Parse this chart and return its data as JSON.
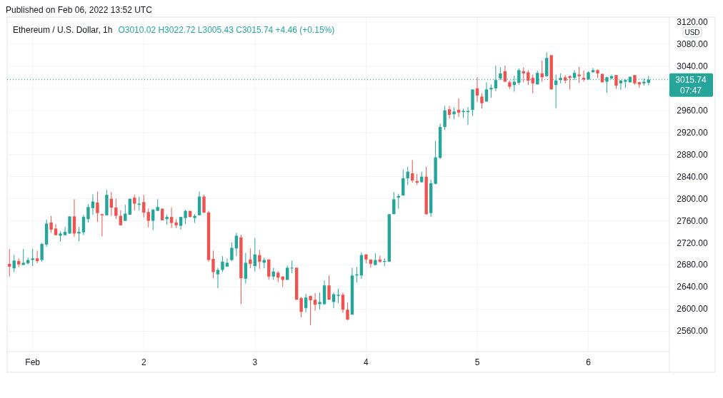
{
  "chart_data": {
    "type": "candlestick",
    "title": "Ethereum / U.S. Dollar, 1h",
    "subtitle": "O3010.02 H3022.72 L3005.43 C3015.74 +4.46 (+0.15%)",
    "ylabel": "USD",
    "annotations": [
      "Published on Feb 06, 2022 13:52 UTC",
      "07:47"
    ],
    "x": [
      "2022-01-31T19:00",
      "2022-01-31T20:00",
      "2022-01-31T21:00",
      "2022-01-31T22:00",
      "2022-01-31T23:00",
      "2022-02-01T00:00",
      "2022-02-01T01:00",
      "2022-02-01T02:00",
      "2022-02-01T03:00",
      "2022-02-01T04:00",
      "2022-02-01T05:00",
      "2022-02-01T06:00",
      "2022-02-01T07:00",
      "2022-02-01T08:00",
      "2022-02-01T09:00",
      "2022-02-01T10:00",
      "2022-02-01T11:00",
      "2022-02-01T12:00",
      "2022-02-01T13:00",
      "2022-02-01T14:00",
      "2022-02-01T15:00",
      "2022-02-01T16:00",
      "2022-02-01T17:00",
      "2022-02-01T18:00",
      "2022-02-01T19:00",
      "2022-02-01T20:00",
      "2022-02-01T21:00",
      "2022-02-01T22:00",
      "2022-02-01T23:00",
      "2022-02-02T00:00",
      "2022-02-02T01:00",
      "2022-02-02T02:00",
      "2022-02-02T03:00",
      "2022-02-02T04:00",
      "2022-02-02T05:00",
      "2022-02-02T06:00",
      "2022-02-02T07:00",
      "2022-02-02T08:00",
      "2022-02-02T09:00",
      "2022-02-02T10:00",
      "2022-02-02T11:00",
      "2022-02-02T12:00",
      "2022-02-02T13:00",
      "2022-02-02T14:00",
      "2022-02-02T15:00",
      "2022-02-02T16:00",
      "2022-02-02T17:00",
      "2022-02-02T18:00",
      "2022-02-02T19:00",
      "2022-02-02T20:00",
      "2022-02-02T21:00",
      "2022-02-02T22:00",
      "2022-02-02T23:00",
      "2022-02-03T00:00",
      "2022-02-03T01:00",
      "2022-02-03T02:00",
      "2022-02-03T03:00",
      "2022-02-03T04:00",
      "2022-02-03T05:00",
      "2022-02-03T06:00",
      "2022-02-03T07:00",
      "2022-02-03T08:00",
      "2022-02-03T09:00",
      "2022-02-03T10:00",
      "2022-02-03T11:00",
      "2022-02-03T12:00",
      "2022-02-03T13:00",
      "2022-02-03T14:00",
      "2022-02-03T15:00",
      "2022-02-03T16:00",
      "2022-02-03T17:00",
      "2022-02-03T18:00",
      "2022-02-03T19:00",
      "2022-02-03T20:00",
      "2022-02-03T21:00",
      "2022-02-03T22:00",
      "2022-02-03T23:00",
      "2022-02-04T00:00",
      "2022-02-04T01:00",
      "2022-02-04T02:00",
      "2022-02-04T03:00",
      "2022-02-04T04:00",
      "2022-02-04T05:00",
      "2022-02-04T06:00",
      "2022-02-04T07:00",
      "2022-02-04T08:00",
      "2022-02-04T09:00",
      "2022-02-04T10:00",
      "2022-02-04T11:00",
      "2022-02-04T12:00",
      "2022-02-04T13:00",
      "2022-02-04T14:00",
      "2022-02-04T15:00",
      "2022-02-04T16:00",
      "2022-02-04T17:00",
      "2022-02-04T18:00",
      "2022-02-04T19:00",
      "2022-02-04T20:00",
      "2022-02-04T21:00",
      "2022-02-04T22:00",
      "2022-02-04T23:00",
      "2022-02-05T00:00",
      "2022-02-05T01:00",
      "2022-02-05T02:00",
      "2022-02-05T03:00",
      "2022-02-05T04:00",
      "2022-02-05T05:00",
      "2022-02-05T06:00",
      "2022-02-05T07:00",
      "2022-02-05T08:00",
      "2022-02-05T09:00",
      "2022-02-05T10:00",
      "2022-02-05T11:00",
      "2022-02-05T12:00",
      "2022-02-05T13:00",
      "2022-02-05T14:00",
      "2022-02-05T15:00",
      "2022-02-05T16:00",
      "2022-02-05T17:00",
      "2022-02-05T18:00",
      "2022-02-05T19:00",
      "2022-02-05T20:00",
      "2022-02-05T21:00",
      "2022-02-05T22:00",
      "2022-02-05T23:00",
      "2022-02-06T00:00",
      "2022-02-06T01:00",
      "2022-02-06T02:00",
      "2022-02-06T03:00",
      "2022-02-06T04:00",
      "2022-02-06T05:00",
      "2022-02-06T06:00",
      "2022-02-06T07:00",
      "2022-02-06T08:00",
      "2022-02-06T09:00",
      "2022-02-06T10:00",
      "2022-02-06T11:00",
      "2022-02-06T12:00",
      "2022-02-06T13:00"
    ],
    "ohlc": [
      [
        2682,
        2709,
        2659,
        2677
      ],
      [
        2674,
        2698,
        2667,
        2688
      ],
      [
        2687,
        2692,
        2676,
        2681
      ],
      [
        2680,
        2709,
        2680,
        2684
      ],
      [
        2683,
        2693,
        2681,
        2689
      ],
      [
        2689,
        2709,
        2678,
        2692
      ],
      [
        2692,
        2706,
        2683,
        2687
      ],
      [
        2689,
        2720,
        2686,
        2718
      ],
      [
        2717,
        2762,
        2713,
        2755
      ],
      [
        2757,
        2769,
        2738,
        2744
      ],
      [
        2746,
        2754,
        2734,
        2734
      ],
      [
        2733,
        2741,
        2722,
        2737
      ],
      [
        2734,
        2749,
        2734,
        2740
      ],
      [
        2737,
        2768,
        2736,
        2768
      ],
      [
        2768,
        2799,
        2731,
        2737
      ],
      [
        2737,
        2749,
        2723,
        2740
      ],
      [
        2739,
        2771,
        2734,
        2767
      ],
      [
        2763,
        2790,
        2757,
        2785
      ],
      [
        2783,
        2808,
        2771,
        2795
      ],
      [
        2793,
        2813,
        2758,
        2774
      ],
      [
        2772,
        2773,
        2732,
        2770
      ],
      [
        2770,
        2816,
        2770,
        2807
      ],
      [
        2800,
        2812,
        2769,
        2784
      ],
      [
        2784,
        2800,
        2763,
        2769
      ],
      [
        2769,
        2779,
        2752,
        2752
      ],
      [
        2760,
        2789,
        2760,
        2773
      ],
      [
        2771,
        2800,
        2771,
        2800
      ],
      [
        2802,
        2807,
        2779,
        2791
      ],
      [
        2789,
        2804,
        2779,
        2791
      ],
      [
        2794,
        2807,
        2766,
        2775
      ],
      [
        2776,
        2782,
        2748,
        2760
      ],
      [
        2760,
        2782,
        2743,
        2780
      ],
      [
        2778,
        2799,
        2778,
        2785
      ],
      [
        2782,
        2782,
        2761,
        2761
      ],
      [
        2763,
        2771,
        2753,
        2767
      ],
      [
        2767,
        2784,
        2747,
        2756
      ],
      [
        2757,
        2763,
        2747,
        2752
      ],
      [
        2751,
        2767,
        2744,
        2767
      ],
      [
        2765,
        2780,
        2754,
        2778
      ],
      [
        2778,
        2778,
        2766,
        2767
      ],
      [
        2765,
        2772,
        2756,
        2769
      ],
      [
        2770,
        2813,
        2770,
        2804
      ],
      [
        2804,
        2807,
        2774,
        2775
      ],
      [
        2775,
        2778,
        2686,
        2689
      ],
      [
        2691,
        2706,
        2656,
        2667
      ],
      [
        2663,
        2675,
        2638,
        2671
      ],
      [
        2671,
        2696,
        2667,
        2686
      ],
      [
        2677,
        2692,
        2677,
        2684
      ],
      [
        2689,
        2721,
        2687,
        2711
      ],
      [
        2710,
        2738,
        2696,
        2733
      ],
      [
        2730,
        2735,
        2609,
        2656
      ],
      [
        2655,
        2702,
        2646,
        2684
      ],
      [
        2690,
        2710,
        2674,
        2682
      ],
      [
        2678,
        2729,
        2668,
        2699
      ],
      [
        2698,
        2707,
        2673,
        2686
      ],
      [
        2684,
        2693,
        2674,
        2689
      ],
      [
        2690,
        2690,
        2653,
        2659
      ],
      [
        2659,
        2675,
        2653,
        2668
      ],
      [
        2666,
        2669,
        2649,
        2657
      ],
      [
        2659,
        2660,
        2640,
        2653
      ],
      [
        2653,
        2679,
        2653,
        2675
      ],
      [
        2674,
        2688,
        2665,
        2675
      ],
      [
        2675,
        2675,
        2617,
        2617
      ],
      [
        2620,
        2622,
        2585,
        2595
      ],
      [
        2602,
        2628,
        2594,
        2621
      ],
      [
        2624,
        2624,
        2571,
        2616
      ],
      [
        2617,
        2629,
        2597,
        2608
      ],
      [
        2609,
        2630,
        2599,
        2613
      ],
      [
        2609,
        2652,
        2608,
        2643
      ],
      [
        2643,
        2661,
        2617,
        2617
      ],
      [
        2613,
        2630,
        2602,
        2627
      ],
      [
        2624,
        2637,
        2611,
        2626
      ],
      [
        2626,
        2630,
        2593,
        2599
      ],
      [
        2599,
        2612,
        2580,
        2581
      ],
      [
        2590,
        2675,
        2590,
        2661
      ],
      [
        2661,
        2676,
        2648,
        2663
      ],
      [
        2661,
        2703,
        2655,
        2698
      ],
      [
        2699,
        2699,
        2683,
        2690
      ],
      [
        2690,
        2690,
        2675,
        2682
      ],
      [
        2680,
        2701,
        2680,
        2689
      ],
      [
        2690,
        2697,
        2684,
        2686
      ],
      [
        2686,
        2692,
        2678,
        2687
      ],
      [
        2686,
        2772,
        2686,
        2772
      ],
      [
        2772,
        2812,
        2772,
        2799
      ],
      [
        2802,
        2809,
        2782,
        2805
      ],
      [
        2806,
        2853,
        2806,
        2837
      ],
      [
        2837,
        2858,
        2825,
        2849
      ],
      [
        2846,
        2870,
        2829,
        2833
      ],
      [
        2832,
        2845,
        2825,
        2829
      ],
      [
        2830,
        2849,
        2829,
        2840
      ],
      [
        2840,
        2858,
        2771,
        2772
      ],
      [
        2774,
        2835,
        2767,
        2828
      ],
      [
        2827,
        2905,
        2826,
        2875
      ],
      [
        2874,
        2936,
        2872,
        2930
      ],
      [
        2930,
        2968,
        2925,
        2960
      ],
      [
        2962,
        2968,
        2945,
        2952
      ],
      [
        2953,
        2965,
        2944,
        2958
      ],
      [
        2961,
        2982,
        2948,
        2956
      ],
      [
        2957,
        2963,
        2946,
        2959
      ],
      [
        2957,
        2966,
        2934,
        2959
      ],
      [
        2961,
        2998,
        2950,
        2998
      ],
      [
        3000,
        3020,
        2975,
        2987
      ],
      [
        2985,
        2991,
        2963,
        2973
      ],
      [
        2976,
        3011,
        2976,
        2998
      ],
      [
        2998,
        3007,
        2983,
        3001
      ],
      [
        3000,
        3041,
        2995,
        3015
      ],
      [
        3018,
        3038,
        3015,
        3027
      ],
      [
        3031,
        3041,
        3012,
        3012
      ],
      [
        3011,
        3014,
        2999,
        3003
      ],
      [
        3006,
        3023,
        2994,
        3012
      ],
      [
        3010,
        3036,
        3006,
        3033
      ],
      [
        3031,
        3038,
        3011,
        3027
      ],
      [
        3029,
        3033,
        3006,
        3014
      ],
      [
        3019,
        3025,
        2991,
        3009
      ],
      [
        3007,
        3032,
        3007,
        3028
      ],
      [
        3027,
        3050,
        3012,
        3020
      ],
      [
        3022,
        3065,
        3021,
        3055
      ],
      [
        3060,
        3060,
        2998,
        2998
      ],
      [
        3006,
        3025,
        2964,
        3014
      ],
      [
        3015,
        3027,
        3009,
        3019
      ],
      [
        3020,
        3024,
        3009,
        3014
      ],
      [
        3022,
        3023,
        2998,
        3019
      ],
      [
        3019,
        3033,
        3015,
        3028
      ],
      [
        3025,
        3039,
        3010,
        3022
      ],
      [
        3019,
        3032,
        3012,
        3016
      ],
      [
        3016,
        3031,
        3016,
        3029
      ],
      [
        3029,
        3037,
        3029,
        3033
      ],
      [
        3033,
        3034,
        3019,
        3027
      ],
      [
        3026,
        3027,
        3011,
        3011
      ],
      [
        3012,
        3021,
        2992,
        3020
      ],
      [
        3018,
        3025,
        3016,
        3022
      ],
      [
        3024,
        3024,
        2999,
        3005
      ],
      [
        3009,
        3015,
        2997,
        3014
      ],
      [
        3012,
        3016,
        3001,
        3015
      ],
      [
        3011,
        3021,
        3010,
        3021
      ],
      [
        3024,
        3024,
        3006,
        3009
      ],
      [
        3011,
        3012,
        3001,
        3007
      ],
      [
        3009,
        3018,
        3005,
        3012
      ],
      [
        3010.02,
        3022.72,
        3005.43,
        3015.74
      ]
    ],
    "colors": [
      "#ef5350",
      "#26a69a",
      "#ef5350",
      "#26a69a",
      "#26a69a",
      "#26a69a",
      "#ef5350",
      "#26a69a",
      "#26a69a",
      "#ef5350",
      "#ef5350",
      "#26a69a",
      "#26a69a",
      "#26a69a",
      "#ef5350",
      "#26a69a",
      "#26a69a",
      "#26a69a",
      "#26a69a",
      "#ef5350",
      "#ef5350",
      "#26a69a",
      "#ef5350",
      "#ef5350",
      "#ef5350",
      "#26a69a",
      "#26a69a",
      "#ef5350",
      "#26a69a",
      "#ef5350",
      "#ef5350",
      "#26a69a",
      "#26a69a",
      "#ef5350",
      "#26a69a",
      "#ef5350",
      "#ef5350",
      "#26a69a",
      "#26a69a",
      "#ef5350",
      "#26a69a",
      "#26a69a",
      "#ef5350",
      "#ef5350",
      "#ef5350",
      "#26a69a",
      "#26a69a",
      "#26a69a",
      "#26a69a",
      "#26a69a",
      "#ef5350",
      "#26a69a",
      "#ef5350",
      "#26a69a",
      "#ef5350",
      "#26a69a",
      "#ef5350",
      "#26a69a",
      "#ef5350",
      "#ef5350",
      "#26a69a",
      "#26a69a",
      "#ef5350",
      "#ef5350",
      "#26a69a",
      "#ef5350",
      "#ef5350",
      "#26a69a",
      "#26a69a",
      "#ef5350",
      "#26a69a",
      "#26a69a",
      "#ef5350",
      "#ef5350",
      "#26a69a",
      "#26a69a",
      "#26a69a",
      "#ef5350",
      "#ef5350",
      "#26a69a",
      "#ef5350",
      "#26a69a",
      "#26a69a",
      "#26a69a",
      "#26a69a",
      "#26a69a",
      "#26a69a",
      "#ef5350",
      "#ef5350",
      "#26a69a",
      "#ef5350",
      "#26a69a",
      "#26a69a",
      "#26a69a",
      "#26a69a",
      "#ef5350",
      "#26a69a",
      "#ef5350",
      "#26a69a",
      "#26a69a",
      "#26a69a",
      "#ef5350",
      "#ef5350",
      "#26a69a",
      "#26a69a",
      "#26a69a",
      "#26a69a",
      "#ef5350",
      "#ef5350",
      "#26a69a",
      "#26a69a",
      "#ef5350",
      "#ef5350",
      "#ef5350",
      "#26a69a",
      "#ef5350",
      "#26a69a",
      "#ef5350",
      "#26a69a",
      "#26a69a",
      "#ef5350",
      "#ef5350",
      "#26a69a",
      "#ef5350",
      "#ef5350",
      "#26a69a",
      "#26a69a",
      "#ef5350",
      "#ef5350",
      "#26a69a",
      "#26a69a",
      "#ef5350",
      "#26a69a",
      "#26a69a",
      "#26a69a",
      "#ef5350",
      "#ef5350",
      "#26a69a",
      "#26a69a"
    ],
    "xlim": [
      "2022-01-31T18:30",
      "2022-02-06T17:30"
    ],
    "xticks": [
      {
        "value": "2022-02-01",
        "label": "Feb"
      },
      {
        "value": "2022-02-02",
        "label": "2"
      },
      {
        "value": "2022-02-03",
        "label": "3"
      },
      {
        "value": "2022-02-04",
        "label": "4"
      },
      {
        "value": "2022-02-05",
        "label": "5"
      },
      {
        "value": "2022-02-06",
        "label": "6"
      }
    ],
    "ylim": [
      2523,
      3129
    ],
    "yticks": [
      {
        "value": 2560,
        "label": "2560.00"
      },
      {
        "value": 2600,
        "label": "2600.00"
      },
      {
        "value": 2640,
        "label": "2640.00"
      },
      {
        "value": 2680,
        "label": "2680.00"
      },
      {
        "value": 2720,
        "label": "2720.00"
      },
      {
        "value": 2760,
        "label": "2760.00"
      },
      {
        "value": 2800,
        "label": "2800.00"
      },
      {
        "value": 2840,
        "label": "2840.00"
      },
      {
        "value": 2880,
        "label": "2880.00"
      },
      {
        "value": 2920,
        "label": "2920.00"
      },
      {
        "value": 2960,
        "label": "2960.00"
      },
      {
        "value": 3000,
        "label": null
      },
      {
        "value": 3040,
        "label": "3040.00"
      },
      {
        "value": 3080,
        "label": "3080.00"
      },
      {
        "value": 3120,
        "label": "3120.00"
      }
    ],
    "ref_lines": [
      {
        "axis": "y",
        "value": 3015.74,
        "label": "3015.74",
        "color": "#26a69a",
        "line_style": "dotted"
      }
    ],
    "grid": true
  }
}
